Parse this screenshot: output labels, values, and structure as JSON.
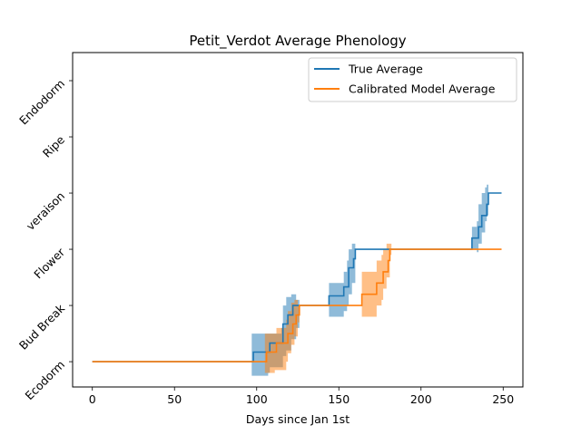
{
  "chart_data": {
    "type": "line",
    "title": "Petit_Verdot Average Phenology",
    "xlabel": "Days since Jan 1st",
    "ylabel": "",
    "xlim": [
      -12,
      262
    ],
    "ylim": [
      -0.45,
      5.5
    ],
    "x_ticks": [
      0,
      50,
      100,
      150,
      200,
      250
    ],
    "y_ticks": [
      {
        "value": 0,
        "label": "Ecodorm"
      },
      {
        "value": 1,
        "label": "Bud Break"
      },
      {
        "value": 2,
        "label": "Flower"
      },
      {
        "value": 3,
        "label": "veraison"
      },
      {
        "value": 4,
        "label": "Ripe"
      },
      {
        "value": 5,
        "label": "Endodorm"
      }
    ],
    "grid": false,
    "legend_position": "top-right",
    "series": [
      {
        "name": "True Average",
        "color": "#1f77b4",
        "band_color": "#1f77b4",
        "points": [
          [
            0,
            0
          ],
          [
            97,
            0
          ],
          [
            98,
            0.17
          ],
          [
            107,
            0.17
          ],
          [
            108,
            0.33
          ],
          [
            115,
            0.33
          ],
          [
            116,
            0.67
          ],
          [
            118,
            0.67
          ],
          [
            119,
            0.83
          ],
          [
            121,
            0.83
          ],
          [
            122,
            1
          ],
          [
            124,
            1
          ],
          [
            143,
            1
          ],
          [
            144,
            1.17
          ],
          [
            146,
            1.17
          ],
          [
            147,
            1.17
          ],
          [
            152,
            1.17
          ],
          [
            153,
            1.33
          ],
          [
            155,
            1.33
          ],
          [
            156,
            1.67
          ],
          [
            158,
            1.67
          ],
          [
            159,
            1.83
          ],
          [
            160,
            2
          ],
          [
            230,
            2
          ],
          [
            231,
            2.2
          ],
          [
            234,
            2.2
          ],
          [
            235,
            2.4
          ],
          [
            236,
            2.4
          ],
          [
            237,
            2.6
          ],
          [
            239,
            2.6
          ],
          [
            240,
            2.8
          ],
          [
            241,
            3
          ],
          [
            249,
            3
          ]
        ],
        "band": [
          [
            97,
            -0.25,
            0.5
          ],
          [
            107,
            -0.2,
            0.5
          ],
          [
            108,
            -0.1,
            0.5
          ],
          [
            115,
            -0.1,
            0.6
          ],
          [
            116,
            0.1,
            1.0
          ],
          [
            118,
            0.2,
            1.15
          ],
          [
            121,
            0.4,
            1.2
          ],
          [
            124,
            0.6,
            1.1
          ],
          [
            126,
            1.0,
            1.0
          ],
          [
            143,
            1.0,
            1.0
          ],
          [
            144,
            0.8,
            1.4
          ],
          [
            152,
            0.8,
            1.4
          ],
          [
            153,
            0.9,
            1.6
          ],
          [
            155,
            1.0,
            1.8
          ],
          [
            156,
            1.2,
            2.0
          ],
          [
            158,
            1.4,
            2.1
          ],
          [
            160,
            2,
            2
          ],
          [
            230,
            2,
            2
          ],
          [
            231,
            2.0,
            2.4
          ],
          [
            234,
            1.95,
            2.5
          ],
          [
            235,
            2.1,
            2.8
          ],
          [
            237,
            2.3,
            3.0
          ],
          [
            239,
            2.5,
            3.1
          ],
          [
            240,
            2.6,
            3.15
          ],
          [
            241,
            3,
            3
          ],
          [
            242,
            3,
            3
          ]
        ]
      },
      {
        "name": "Calibrated Model Average",
        "color": "#ff7f0e",
        "band_color": "#ff7f0e",
        "points": [
          [
            0,
            0
          ],
          [
            105,
            0
          ],
          [
            106,
            0.17
          ],
          [
            111,
            0.17
          ],
          [
            112,
            0.33
          ],
          [
            118,
            0.33
          ],
          [
            119,
            0.5
          ],
          [
            121,
            0.5
          ],
          [
            122,
            0.67
          ],
          [
            123,
            0.67
          ],
          [
            124,
            0.83
          ],
          [
            125,
            0.83
          ],
          [
            126,
            1
          ],
          [
            163,
            1
          ],
          [
            164,
            1.2
          ],
          [
            172,
            1.2
          ],
          [
            173,
            1.4
          ],
          [
            176,
            1.4
          ],
          [
            177,
            1.6
          ],
          [
            179,
            1.6
          ],
          [
            180,
            1.8
          ],
          [
            181,
            2
          ],
          [
            249,
            2
          ]
        ],
        "band": [
          [
            105,
            -0.2,
            0.5
          ],
          [
            111,
            -0.15,
            0.5
          ],
          [
            112,
            -0.15,
            0.6
          ],
          [
            118,
            0.0,
            0.75
          ],
          [
            119,
            0.15,
            0.9
          ],
          [
            121,
            0.3,
            1.05
          ],
          [
            123,
            0.45,
            1.1
          ],
          [
            125,
            0.7,
            1.0
          ],
          [
            126,
            1,
            1
          ],
          [
            163,
            1,
            1
          ],
          [
            164,
            0.8,
            1.6
          ],
          [
            172,
            0.8,
            1.6
          ],
          [
            173,
            1.0,
            1.8
          ],
          [
            176,
            1.1,
            1.9
          ],
          [
            177,
            1.3,
            2.0
          ],
          [
            179,
            1.5,
            2.1
          ],
          [
            181,
            1.9,
            2.1
          ],
          [
            182,
            2,
            2
          ]
        ]
      }
    ]
  }
}
